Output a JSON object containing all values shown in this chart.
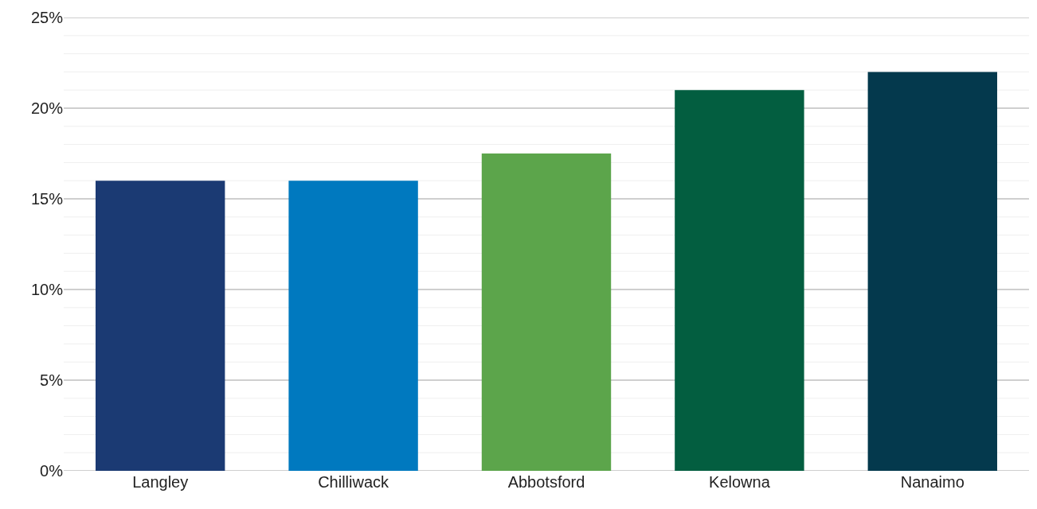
{
  "chart_data": {
    "type": "bar",
    "categories": [
      "Langley",
      "Chilliwack",
      "Abbotsford",
      "Kelowna",
      "Nanaimo"
    ],
    "values": [
      16,
      16,
      17.5,
      21,
      22
    ],
    "colors": [
      "#1b3a73",
      "#0079bf",
      "#5ca54b",
      "#035e40",
      "#04394d"
    ],
    "ylim": [
      0,
      25
    ],
    "yticks": [
      {
        "value": 0,
        "label": "0%"
      },
      {
        "value": 1,
        "label": null
      },
      {
        "value": 2,
        "label": null
      },
      {
        "value": 3,
        "label": null
      },
      {
        "value": 4,
        "label": null
      },
      {
        "value": 5,
        "label": "5%"
      },
      {
        "value": 6,
        "label": null
      },
      {
        "value": 7,
        "label": null
      },
      {
        "value": 8,
        "label": null
      },
      {
        "value": 9,
        "label": null
      },
      {
        "value": 10,
        "label": "10%"
      },
      {
        "value": 11,
        "label": null
      },
      {
        "value": 12,
        "label": null
      },
      {
        "value": 13,
        "label": null
      },
      {
        "value": 14,
        "label": null
      },
      {
        "value": 15,
        "label": "15%"
      },
      {
        "value": 16,
        "label": null
      },
      {
        "value": 17,
        "label": null
      },
      {
        "value": 18,
        "label": null
      },
      {
        "value": 19,
        "label": null
      },
      {
        "value": 20,
        "label": "20%"
      },
      {
        "value": 21,
        "label": null
      },
      {
        "value": 22,
        "label": null
      },
      {
        "value": 23,
        "label": null
      },
      {
        "value": 24,
        "label": null
      },
      {
        "value": 25,
        "label": "25%"
      }
    ],
    "grid": "y"
  }
}
